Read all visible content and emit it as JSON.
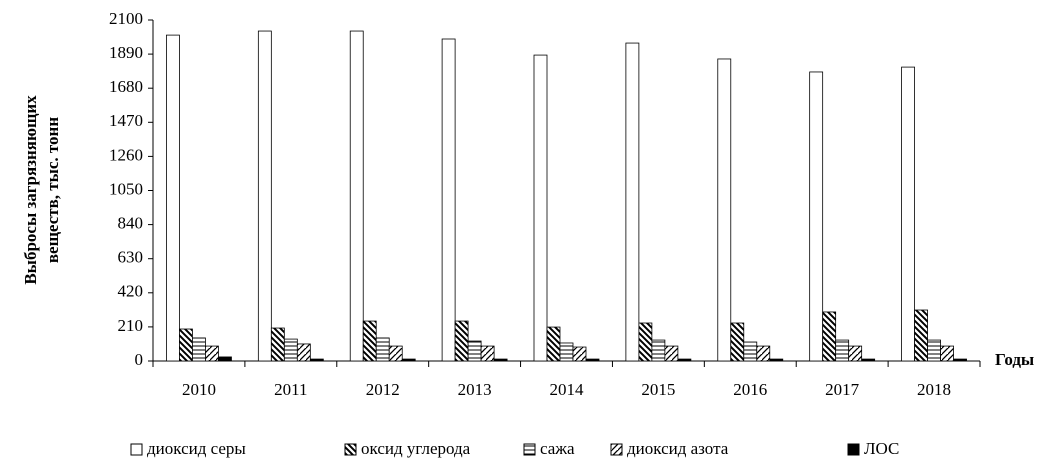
{
  "chart_data": {
    "type": "bar",
    "y_label": [
      "Выбросы загрязняющих",
      "веществ, тыс. тонн"
    ],
    "x_label": "Годы",
    "categories": [
      "2010",
      "2011",
      "2012",
      "2013",
      "2014",
      "2015",
      "2016",
      "2017",
      "2018"
    ],
    "series": [
      {
        "name": "диоксид серы",
        "color": "#000000",
        "pattern": "none",
        "values": [
          2007,
          2032,
          2032,
          1983,
          1884,
          1958,
          1860,
          1780,
          1810
        ]
      },
      {
        "name": "оксид углерода",
        "color": "#000000",
        "pattern": "back-diagonal",
        "values": [
          197,
          203,
          246,
          246,
          209,
          234,
          234,
          302,
          314
        ]
      },
      {
        "name": "сажа",
        "color": "#000000",
        "pattern": "horizontal",
        "values": [
          142,
          135,
          142,
          123,
          111,
          129,
          117,
          129,
          129
        ]
      },
      {
        "name": "диоксид азота",
        "color": "#000000",
        "pattern": "diagonal",
        "values": [
          92,
          105,
          92,
          92,
          86,
          92,
          92,
          92,
          92
        ]
      },
      {
        "name": "ЛОС",
        "color": "#000000",
        "pattern": "solid",
        "values": [
          25,
          12,
          12,
          12,
          12,
          12,
          12,
          12,
          12
        ]
      }
    ],
    "ylim": [
      0,
      2100
    ],
    "yticks": [
      0,
      210,
      420,
      630,
      840,
      1050,
      1260,
      1470,
      1680,
      1890,
      2100
    ],
    "grid": false,
    "legend": "bottom"
  }
}
